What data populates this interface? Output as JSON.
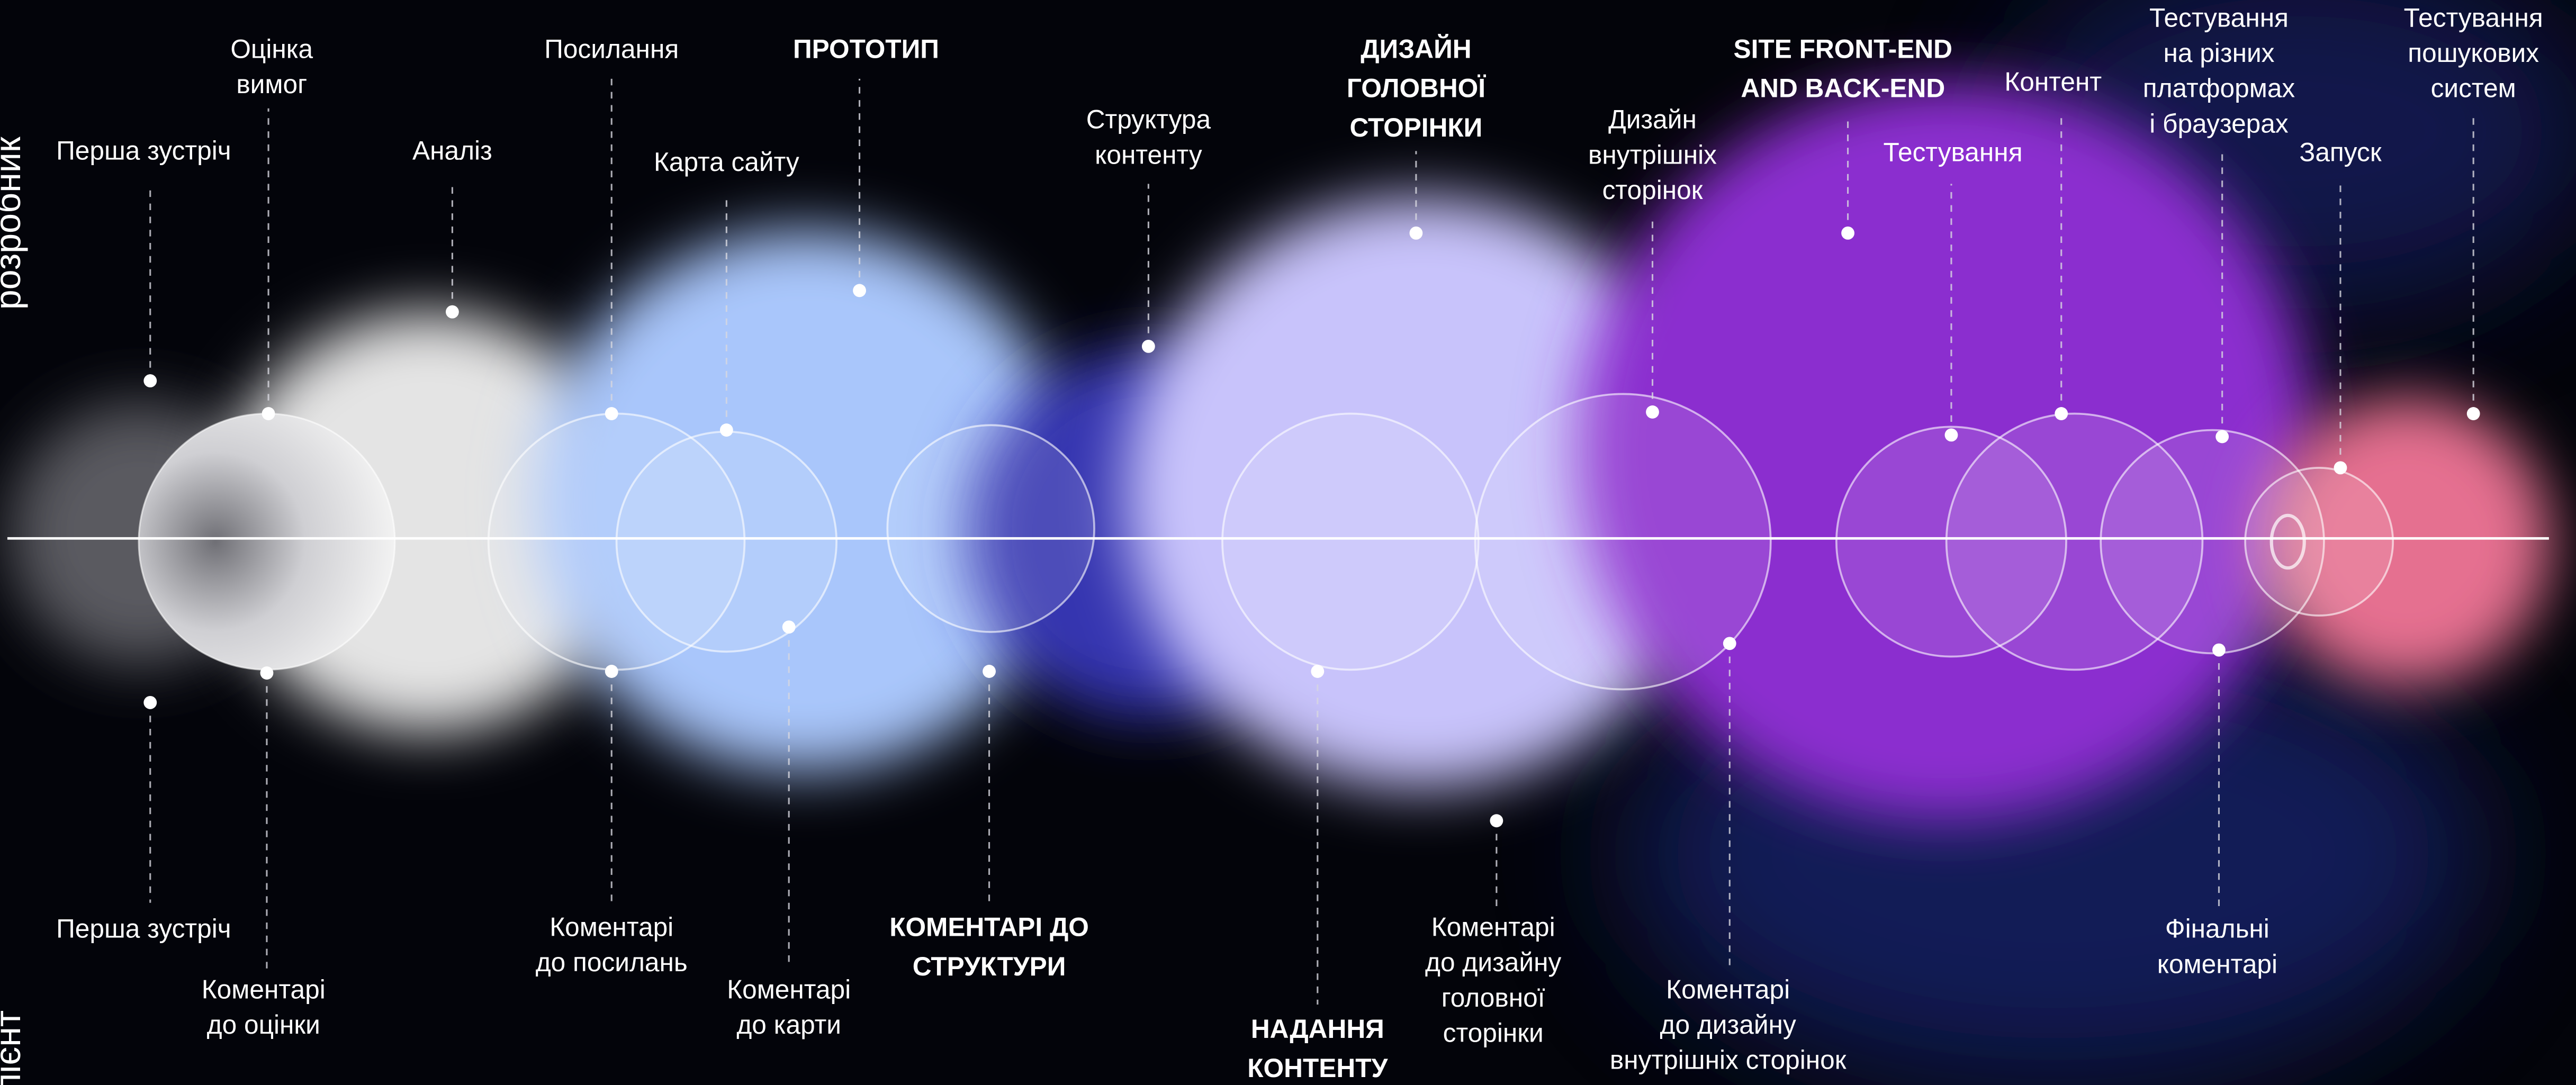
{
  "side_labels": [
    "розробник",
    "клієнт"
  ],
  "top": [
    {
      "lines": [
        "Перша зустріч"
      ],
      "bold": false
    },
    {
      "lines": [
        "Оцінка",
        "вимог"
      ],
      "bold": false
    },
    {
      "lines": [
        "Аналіз"
      ],
      "bold": false
    },
    {
      "lines": [
        "Посилання"
      ],
      "bold": false
    },
    {
      "lines": [
        "Карта сайту"
      ],
      "bold": false
    },
    {
      "lines": [
        "ПРОТОТИП"
      ],
      "bold": true
    },
    {
      "lines": [
        "Структура",
        "контенту"
      ],
      "bold": false
    },
    {
      "lines": [
        "ДИЗАЙН",
        "ГОЛОВНОЇ",
        "СТОРІНКИ"
      ],
      "bold": true
    },
    {
      "lines": [
        "Дизайн",
        "внутрішніх",
        "сторінок"
      ],
      "bold": false
    },
    {
      "lines": [
        "SITE FRONT-END",
        "AND BACK-END"
      ],
      "bold": true
    },
    {
      "lines": [
        "Контент"
      ],
      "bold": false
    },
    {
      "lines": [
        "Тестування"
      ],
      "bold": false
    },
    {
      "lines": [
        "Тестування",
        "на різних",
        "платформах",
        "і браузерах"
      ],
      "bold": false
    },
    {
      "lines": [
        "Запуск"
      ],
      "bold": false
    },
    {
      "lines": [
        "Тестування",
        "пошукових",
        "систем"
      ],
      "bold": false
    }
  ],
  "bottom": [
    {
      "lines": [
        "Перша зустріч"
      ],
      "bold": false
    },
    {
      "lines": [
        "Коментарі",
        "до оцінки"
      ],
      "bold": false
    },
    {
      "lines": [
        "Коментарі",
        "до посилань"
      ],
      "bold": false
    },
    {
      "lines": [
        "Коментарі",
        "до карти"
      ],
      "bold": false
    },
    {
      "lines": [
        "КОМЕНТАРІ ДО",
        "СТРУКТУРИ"
      ],
      "bold": true
    },
    {
      "lines": [
        "НАДАННЯ",
        "КОНТЕНТУ"
      ],
      "bold": true
    },
    {
      "lines": [
        "Коментарі",
        "до дизайну",
        "головної",
        "сторінки"
      ],
      "bold": false
    },
    {
      "lines": [
        "Коментарі",
        "до дизайну",
        "внутрішніх сторінок"
      ],
      "bold": false
    },
    {
      "lines": [
        "Фінальні",
        "коментарі"
      ],
      "bold": false
    }
  ]
}
